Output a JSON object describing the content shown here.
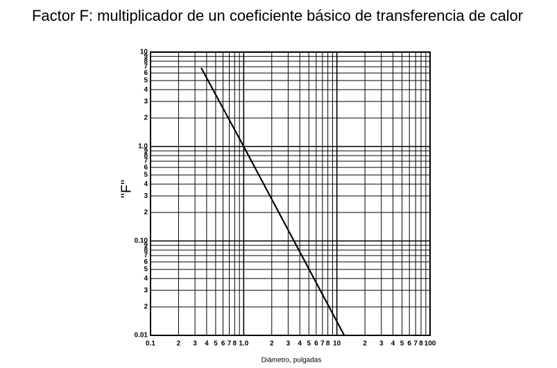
{
  "chart_data": {
    "type": "line",
    "title": "Factor F: multiplicador de un coeficiente básico de transferencia de calor",
    "ylabel": "\"F\"",
    "xlabel": "Diámetro, pulgadas",
    "xlog": true,
    "ylog": true,
    "grid": true,
    "xlim": [
      0.1,
      100
    ],
    "ylim": [
      0.01,
      10
    ],
    "xticks": [
      0.1,
      {
        "value": 0.2,
        "label": "2"
      },
      {
        "value": 0.3,
        "label": "3"
      },
      {
        "value": 0.4,
        "label": "4"
      },
      {
        "value": 0.5,
        "label": "5"
      },
      {
        "value": 0.6,
        "label": "6"
      },
      {
        "value": 0.7,
        "label": "7"
      },
      {
        "value": 0.8,
        "label": "8"
      },
      {
        "value": 1,
        "label": "1.0"
      },
      2,
      3,
      4,
      5,
      6,
      7,
      8,
      10,
      {
        "value": 20,
        "label": "2"
      },
      {
        "value": 30,
        "label": "3"
      },
      {
        "value": 40,
        "label": "4"
      },
      {
        "value": 50,
        "label": "5"
      },
      {
        "value": 60,
        "label": "6"
      },
      {
        "value": 70,
        "label": "7"
      },
      {
        "value": 80,
        "label": "8"
      },
      100
    ],
    "minor_xticks": [
      0.9,
      9,
      90
    ],
    "yticks": [
      0.01,
      {
        "value": 0.02,
        "label": "2"
      },
      {
        "value": 0.03,
        "label": "3"
      },
      {
        "value": 0.04,
        "label": "4"
      },
      {
        "value": 0.05,
        "label": "5"
      },
      {
        "value": 0.06,
        "label": "6"
      },
      {
        "value": 0.07,
        "label": "7"
      },
      {
        "value": 0.08,
        "label": "8"
      },
      {
        "value": 0.09,
        "label": "9"
      },
      {
        "value": 0.1,
        "label": "0.10"
      },
      {
        "value": 0.2,
        "label": "2"
      },
      {
        "value": 0.3,
        "label": "3"
      },
      {
        "value": 0.4,
        "label": "4"
      },
      {
        "value": 0.5,
        "label": "5"
      },
      {
        "value": 0.6,
        "label": "6"
      },
      {
        "value": 0.7,
        "label": "7"
      },
      {
        "value": 0.8,
        "label": "8"
      },
      {
        "value": 0.9,
        "label": "9"
      },
      {
        "value": 1,
        "label": "1.0"
      },
      2,
      3,
      4,
      5,
      6,
      7,
      8,
      9,
      10
    ],
    "series": [
      {
        "color": "#000000",
        "x": [
          0.35,
          1.0,
          12
        ],
        "values": [
          6.8,
          1.0,
          0.01
        ]
      }
    ]
  }
}
